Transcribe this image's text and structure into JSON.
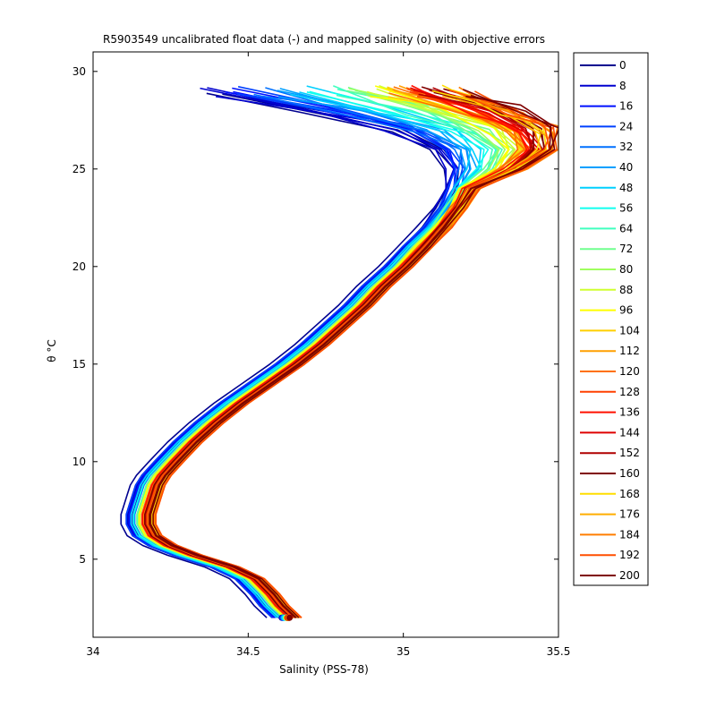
{
  "chart_data": {
    "type": "line",
    "title": "R5903549 uncalibrated float data (-) and mapped salinity (o) with objective errors",
    "xlabel": "Salinity (PSS-78)",
    "ylabel": "θ °C",
    "xlim": [
      34,
      35.5
    ],
    "ylim": [
      1,
      31
    ],
    "xticks": [
      34,
      34.5,
      35,
      35.5
    ],
    "xtick_labels": [
      "34",
      "34.5",
      "35",
      "35.5"
    ],
    "yticks": [
      5,
      10,
      15,
      20,
      25,
      30
    ],
    "ytick_labels": [
      "5",
      "10",
      "15",
      "20",
      "25",
      "30"
    ],
    "grid": false,
    "legend_position": "outside-right",
    "legend": {
      "labels": [
        "0",
        "8",
        "16",
        "24",
        "32",
        "40",
        "48",
        "56",
        "64",
        "72",
        "80",
        "88",
        "96",
        "104",
        "112",
        "120",
        "128",
        "136",
        "144",
        "152",
        "160",
        "168",
        "176",
        "184",
        "192",
        "200"
      ],
      "colors": [
        "#00008f",
        "#0000cf",
        "#0010ff",
        "#0040ff",
        "#0070ff",
        "#00a0ff",
        "#00d0ff",
        "#10ffef",
        "#40ffbf",
        "#70ff8f",
        "#a0ff60",
        "#d0ff30",
        "#ffff00",
        "#ffcf00",
        "#ff9f00",
        "#ff7000",
        "#ff4000",
        "#ff1000",
        "#df0000",
        "#af0000",
        "#800000",
        "#ffdd00",
        "#ffae00",
        "#ff7e00",
        "#ff4f00",
        "#7f0000"
      ]
    },
    "base_profile": {
      "theta": [
        2.0,
        2.6,
        3.2,
        4.0,
        4.6,
        5.2,
        5.7,
        6.2,
        6.8,
        7.3,
        7.8,
        8.3,
        8.8,
        9.3,
        10.0,
        11.0,
        12.0,
        13.0,
        14.0,
        15.0,
        16.0,
        17.0,
        18.0,
        19.0,
        20.0,
        21.0,
        22.0,
        23.0,
        24.0,
        25.0,
        26.0,
        27.0,
        28.0,
        29.0
      ],
      "salinity": [
        34.62,
        34.58,
        34.55,
        34.5,
        34.42,
        34.3,
        34.22,
        34.17,
        34.15,
        34.15,
        34.16,
        34.17,
        34.18,
        34.2,
        34.24,
        34.3,
        34.37,
        34.45,
        34.54,
        34.63,
        34.71,
        34.78,
        34.85,
        34.91,
        34.98,
        35.04,
        35.1,
        35.15,
        35.19,
        35.22,
        35.2,
        35.08,
        34.85,
        34.55
      ]
    },
    "series": [
      {
        "name": "0",
        "salinity_offset": -0.04,
        "top_extra": -0.12
      },
      {
        "name": "8",
        "salinity_offset": -0.035,
        "top_extra": -0.15
      },
      {
        "name": "16",
        "salinity_offset": -0.03,
        "top_extra": -0.08
      },
      {
        "name": "24",
        "salinity_offset": -0.025,
        "top_extra": -0.04
      },
      {
        "name": "32",
        "salinity_offset": -0.02,
        "top_extra": 0.0
      },
      {
        "name": "40",
        "salinity_offset": -0.015,
        "top_extra": 0.05
      },
      {
        "name": "48",
        "salinity_offset": -0.01,
        "top_extra": 0.12
      },
      {
        "name": "56",
        "salinity_offset": 0.0,
        "top_extra": 0.18
      },
      {
        "name": "64",
        "salinity_offset": 0.005,
        "top_extra": 0.22
      },
      {
        "name": "72",
        "salinity_offset": 0.01,
        "top_extra": 0.26
      },
      {
        "name": "80",
        "salinity_offset": 0.01,
        "top_extra": 0.3
      },
      {
        "name": "88",
        "salinity_offset": 0.015,
        "top_extra": 0.33
      },
      {
        "name": "96",
        "salinity_offset": 0.015,
        "top_extra": 0.36
      },
      {
        "name": "104",
        "salinity_offset": 0.02,
        "top_extra": 0.38
      },
      {
        "name": "112",
        "salinity_offset": 0.02,
        "top_extra": 0.4
      },
      {
        "name": "120",
        "salinity_offset": 0.02,
        "top_extra": 0.42
      },
      {
        "name": "128",
        "salinity_offset": 0.025,
        "top_extra": 0.44
      },
      {
        "name": "136",
        "salinity_offset": 0.025,
        "top_extra": 0.46
      },
      {
        "name": "144",
        "salinity_offset": 0.03,
        "top_extra": 0.48
      },
      {
        "name": "152",
        "salinity_offset": 0.03,
        "top_extra": 0.5
      },
      {
        "name": "160",
        "salinity_offset": 0.03,
        "top_extra": 0.52
      },
      {
        "name": "168",
        "salinity_offset": 0.035,
        "top_extra": 0.54
      },
      {
        "name": "176",
        "salinity_offset": 0.035,
        "top_extra": 0.56
      },
      {
        "name": "184",
        "salinity_offset": 0.04,
        "top_extra": 0.58
      },
      {
        "name": "192",
        "salinity_offset": 0.04,
        "top_extra": 0.6
      },
      {
        "name": "200",
        "salinity_offset": 0.045,
        "top_extra": 0.62
      }
    ]
  }
}
